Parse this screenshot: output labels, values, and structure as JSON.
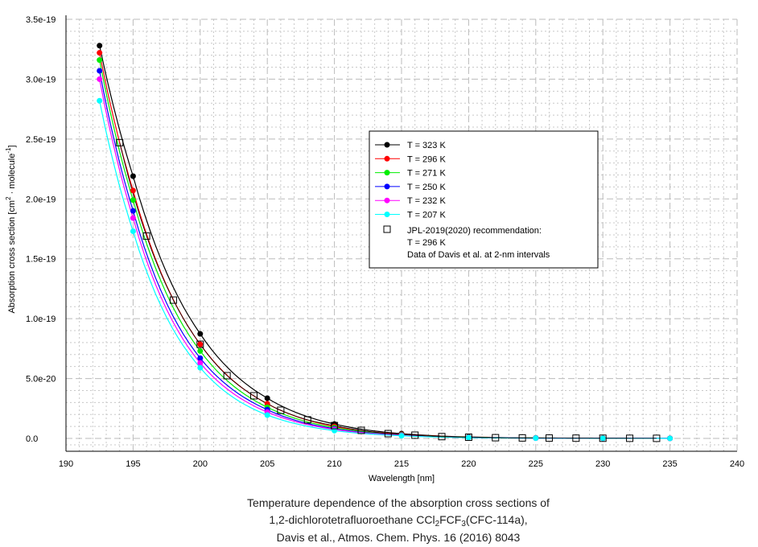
{
  "chart_data": {
    "type": "line",
    "xlabel": "Wavelength [nm]",
    "ylabel_parts": [
      "Absorption cross section [cm",
      "2",
      " · molecule",
      "-1",
      "]"
    ],
    "xlim": [
      190,
      240
    ],
    "ylim": [
      0,
      3.5e-19
    ],
    "xticks": [
      190,
      195,
      200,
      205,
      210,
      215,
      220,
      225,
      230,
      235,
      240
    ],
    "yticks": [
      {
        "v": 0,
        "label": "0.0"
      },
      {
        "v": 5e-20,
        "label": "5.0e-20"
      },
      {
        "v": 1e-19,
        "label": "1.0e-19"
      },
      {
        "v": 1.5e-19,
        "label": "1.5e-19"
      },
      {
        "v": 2e-19,
        "label": "2.0e-19"
      },
      {
        "v": 2.5e-19,
        "label": "2.5e-19"
      },
      {
        "v": 3e-19,
        "label": "3.0e-19"
      },
      {
        "v": 3.5e-19,
        "label": "3.5e-19"
      }
    ],
    "grid": true,
    "legend_position": "center-right",
    "x": [
      192.5,
      195,
      200,
      205,
      210,
      215,
      220,
      225,
      230,
      235
    ],
    "series": [
      {
        "name": "T = 323 K",
        "color": "#000000",
        "values": [
          3.28e-19,
          2.19e-19,
          8.73e-20,
          3.36e-20,
          1.2e-20,
          4e-21,
          1.2e-21,
          4e-22,
          1.5e-22,
          6e-23
        ]
      },
      {
        "name": "T = 296 K",
        "color": "#ff0000",
        "values": [
          3.22e-19,
          2.07e-19,
          7.86e-20,
          2.9e-20,
          1e-20,
          3.4e-21,
          1e-21,
          3.3e-22,
          1.2e-22,
          5e-23
        ]
      },
      {
        "name": "T = 271 K",
        "color": "#00ee00",
        "values": [
          3.16e-19,
          1.99e-19,
          7.3e-20,
          2.6e-20,
          9e-21,
          3e-21,
          9e-22,
          3e-22,
          1.1e-22,
          4e-23
        ]
      },
      {
        "name": "T = 250 K",
        "color": "#0000ff",
        "values": [
          3.07e-19,
          1.9e-19,
          6.7e-20,
          2.4e-20,
          8e-21,
          2.7e-21,
          8e-22,
          2.7e-22,
          1e-22,
          4e-23
        ]
      },
      {
        "name": "T = 232 K",
        "color": "#ff00ff",
        "values": [
          3e-19,
          1.84e-19,
          6.3e-20,
          2.2e-20,
          7.5e-21,
          2.5e-21,
          7.5e-22,
          2.5e-22,
          9e-23,
          3.5e-23
        ]
      },
      {
        "name": "T = 207 K",
        "color": "#00ffff",
        "values": [
          2.82e-19,
          1.73e-19,
          5.9e-20,
          1.95e-20,
          6.5e-21,
          2.2e-21,
          6.5e-22,
          2.2e-22,
          8e-23,
          3e-23
        ]
      }
    ],
    "reference": {
      "name_lines": [
        "JPL-2019(2020) recommendation:",
        "T = 296 K",
        "Data of Davis et al. at 2-nm intervals"
      ],
      "x": [
        194,
        196,
        198,
        200,
        202,
        204,
        206,
        208,
        210,
        212,
        214,
        216,
        218,
        220,
        222,
        224,
        226,
        228,
        230,
        232,
        234
      ],
      "values": [
        2.47e-19,
        1.69e-19,
        1.155e-19,
        7.86e-20,
        5.24e-20,
        3.56e-20,
        2.35e-20,
        1.55e-20,
        1.07e-20,
        6.7e-21,
        4e-21,
        2.7e-21,
        1.5e-21,
        1e-21,
        6e-22,
        4e-22,
        3e-22,
        2e-22,
        1.5e-22,
        1e-22,
        7e-23
      ]
    },
    "caption": {
      "line1": "Temperature dependence of the absorption cross sections of",
      "line2_parts": [
        "1,2-dichlorotetrafluoroethane CCl",
        "2",
        "FCF",
        "3",
        "(CFC-114a),"
      ],
      "line3": "Davis et al., Atmos. Chem. Phys. 16 (2016) 8043"
    }
  }
}
